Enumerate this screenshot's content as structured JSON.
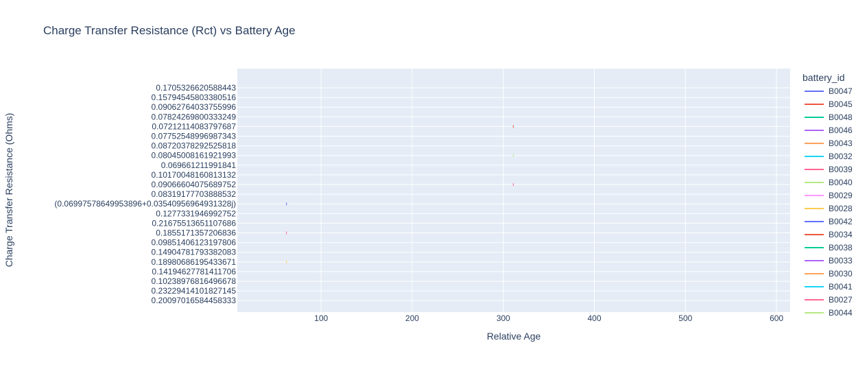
{
  "chart_data": {
    "type": "line",
    "title": "Charge Transfer Resistance (Rct) vs Battery Age",
    "xlabel": "Relative Age",
    "ylabel": "Charge Transfer Resistance (Ohms)",
    "xlim": [
      8,
      615
    ],
    "x_ticks": [
      100,
      200,
      300,
      400,
      500,
      600
    ],
    "y_axis_type": "category",
    "y_categories": [
      "0.1705326620588443",
      "0.15794545803380516",
      "0.09062764033755996",
      "0.07824269800333249",
      "0.07212114083797687",
      "0.07752548996987343",
      "0.08720378292525818",
      "0.08045008161921993",
      "0.069661211991841",
      "0.10170048160813132",
      "0.09066604075689752",
      "0.08319177703888532",
      "(0.06997578649953896+0.03540956964931328j)",
      "0.1277331946992752",
      "0.21675513651107686",
      "0.1855171357206836",
      "0.09851406123197806",
      "0.14904781793382083",
      "0.18980686195433671",
      "0.14194627781411706",
      "0.10238976816496678",
      "0.23229414101827145",
      "0.20097016584458333"
    ],
    "grid": true,
    "legend_title": "battery_id",
    "legend_position": "right",
    "series": [
      {
        "name": "B0047",
        "color": "#636efa",
        "points": [
          {
            "x": 62,
            "y": "(0.06997578649953896+0.03540956964931328j)"
          }
        ]
      },
      {
        "name": "B0045",
        "color": "#EF553B",
        "points": [
          {
            "x": 311,
            "y": "0.07212114083797687"
          }
        ]
      },
      {
        "name": "B0048",
        "color": "#00cc96",
        "points": []
      },
      {
        "name": "B0046",
        "color": "#ab63fa",
        "points": []
      },
      {
        "name": "B0043",
        "color": "#FFA15A",
        "points": []
      },
      {
        "name": "B0032",
        "color": "#19d3f3",
        "points": []
      },
      {
        "name": "B0039",
        "color": "#FF6692",
        "points": [
          {
            "x": 62,
            "y": "0.1855171357206836"
          },
          {
            "x": 311,
            "y": "0.09066604075689752"
          }
        ]
      },
      {
        "name": "B0040",
        "color": "#B6E880",
        "points": [
          {
            "x": 311,
            "y": "0.08045008161921993"
          }
        ]
      },
      {
        "name": "B0029",
        "color": "#FF97FF",
        "points": []
      },
      {
        "name": "B0028",
        "color": "#FECB52",
        "points": [
          {
            "x": 62,
            "y": "0.18980686195433671"
          }
        ]
      },
      {
        "name": "B0042",
        "color": "#636efa",
        "points": []
      },
      {
        "name": "B0034",
        "color": "#EF553B",
        "points": []
      },
      {
        "name": "B0038",
        "color": "#00cc96",
        "points": []
      },
      {
        "name": "B0033",
        "color": "#ab63fa",
        "points": []
      },
      {
        "name": "B0030",
        "color": "#FFA15A",
        "points": []
      },
      {
        "name": "B0041",
        "color": "#19d3f3",
        "points": []
      },
      {
        "name": "B0027",
        "color": "#FF6692",
        "points": []
      },
      {
        "name": "B0044",
        "color": "#B6E880",
        "points": []
      }
    ]
  }
}
